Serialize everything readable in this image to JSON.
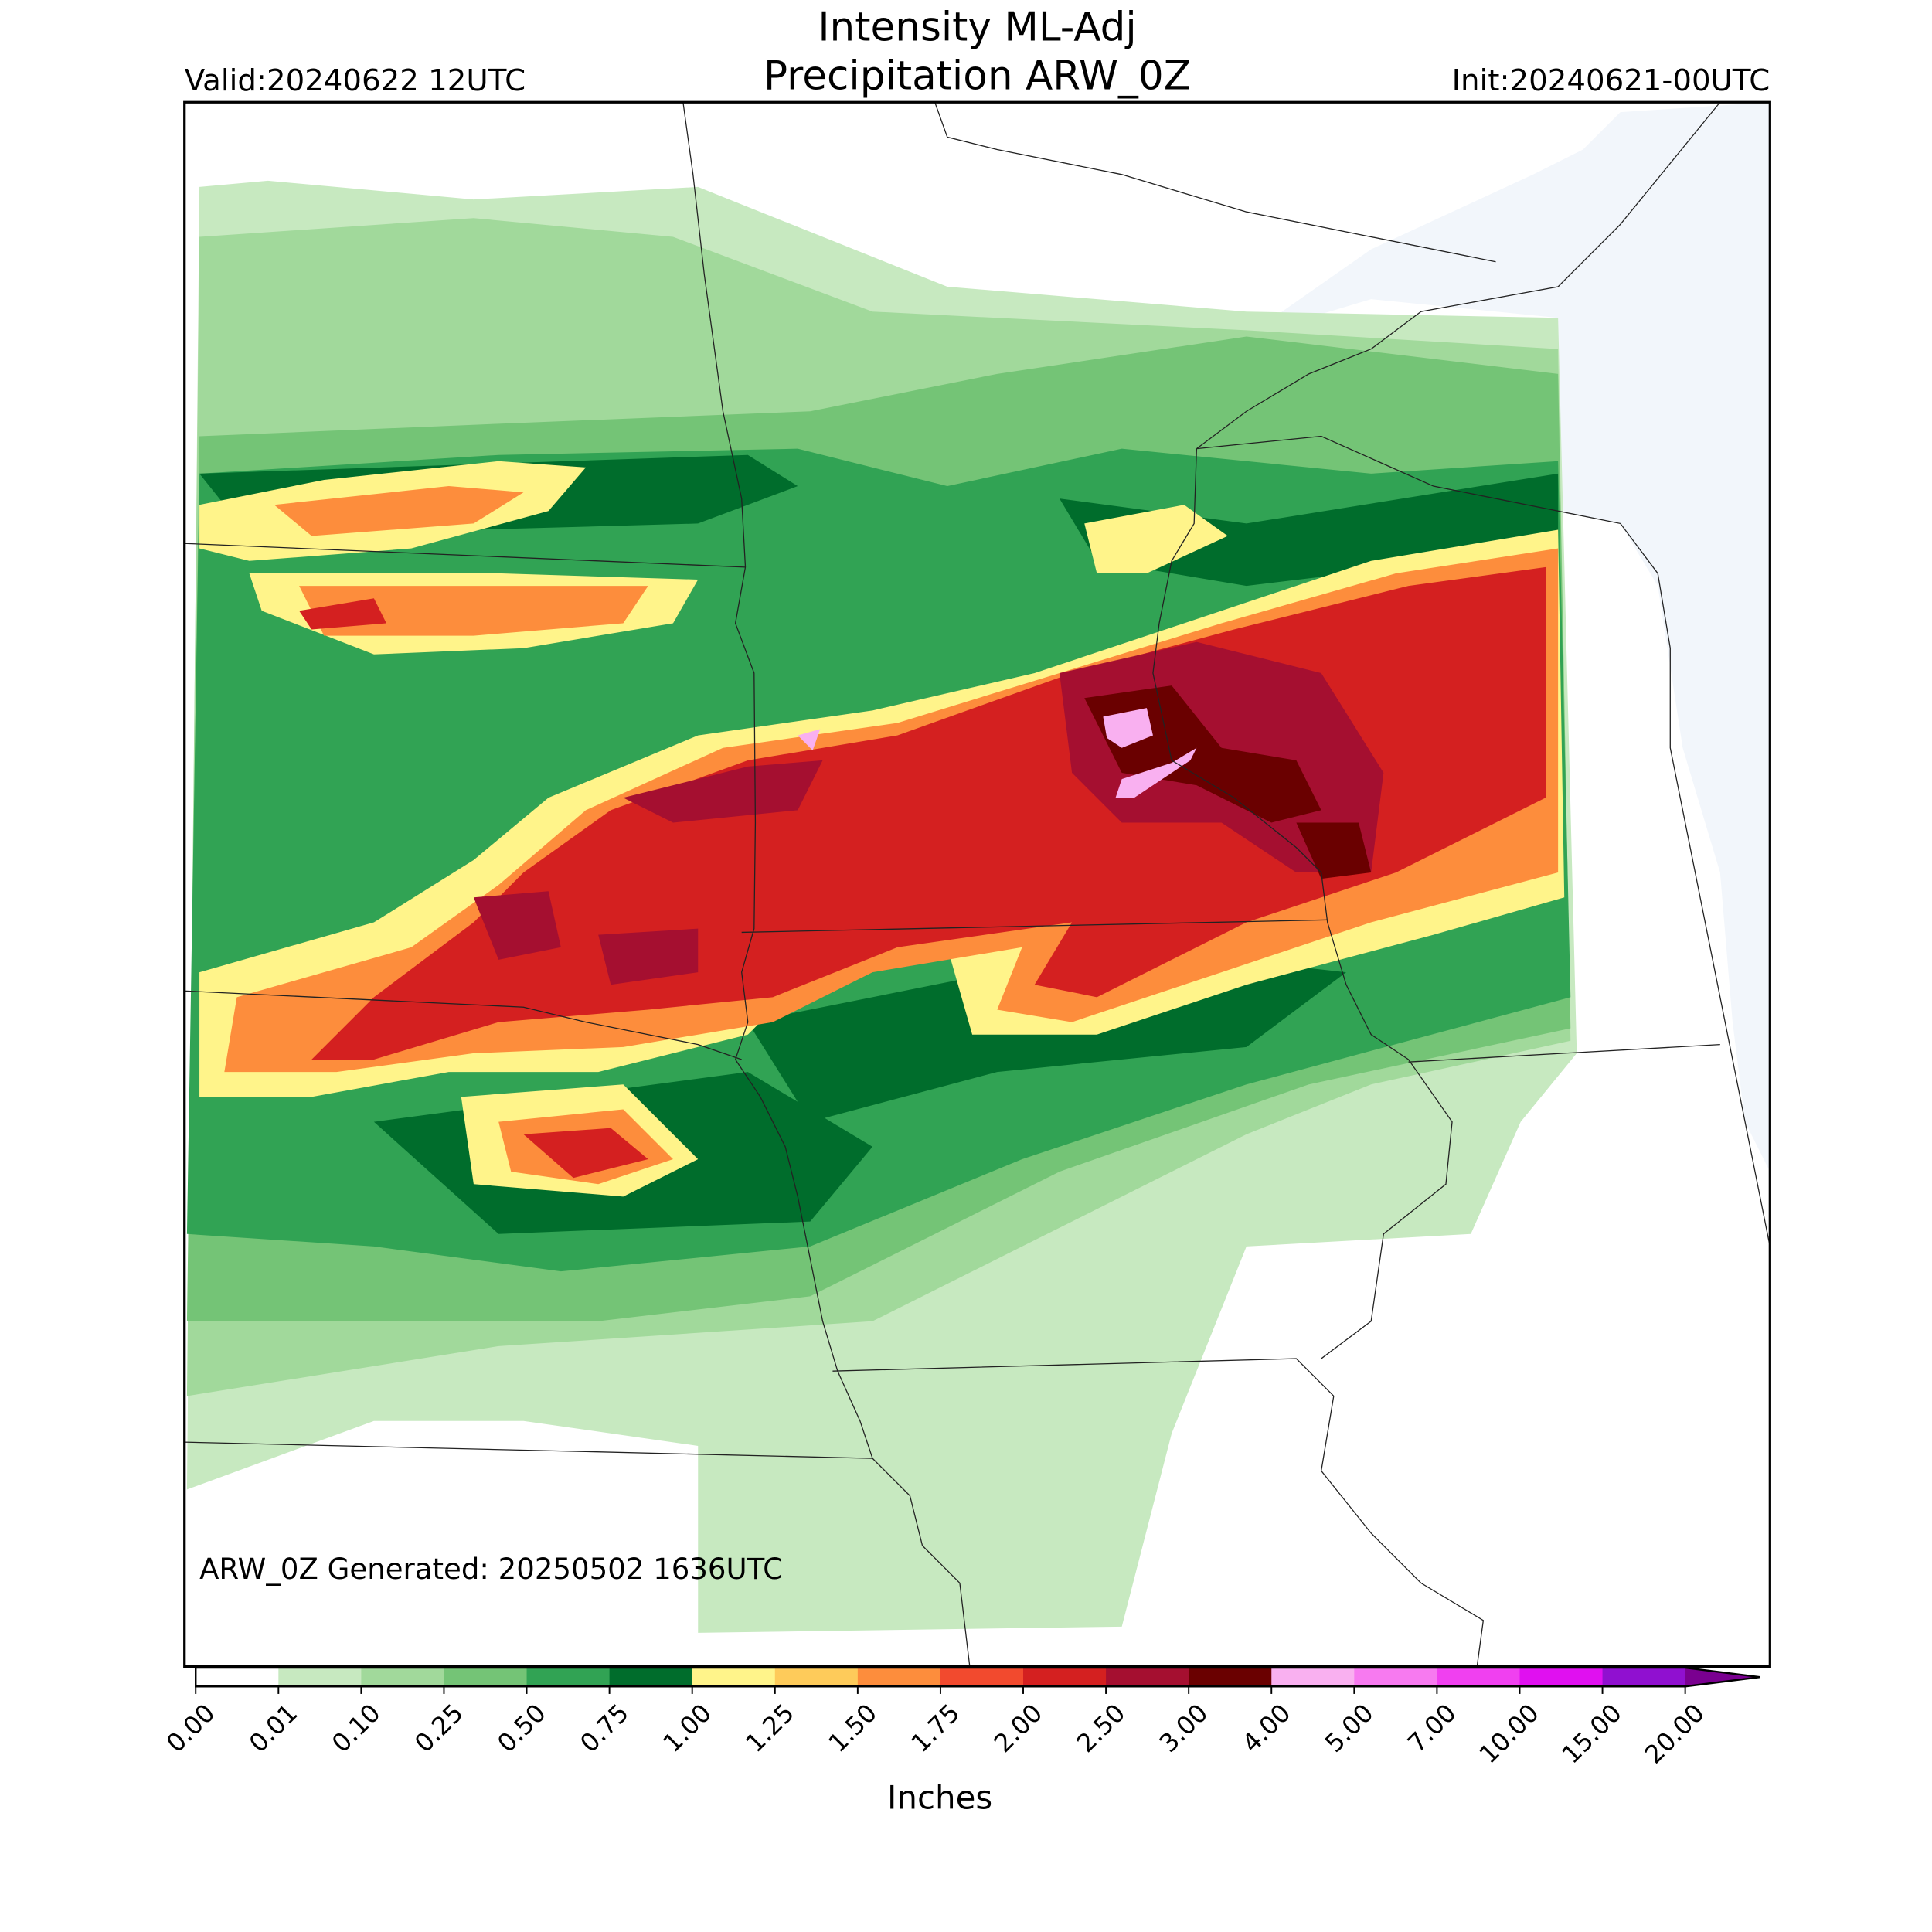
{
  "header": {
    "title_line1": "Intensity ML-Adj",
    "title_line2": "Precipitation ARW_0Z",
    "valid": "Valid:20240622 12UTC",
    "init": "Init:20240621-00UTC"
  },
  "map": {
    "generated": "ARW_0Z Generated: 20250502 1636UTC"
  },
  "colorbar": {
    "label": "Inches",
    "ticks": [
      {
        "value": 0,
        "label": "0.00"
      },
      {
        "value": 0.01,
        "label": "0.01"
      },
      {
        "value": 0.1,
        "label": "0.10"
      },
      {
        "value": 0.25,
        "label": "0.25"
      },
      {
        "value": 0.5,
        "label": "0.50"
      },
      {
        "value": 0.75,
        "label": "0.75"
      },
      {
        "value": 1,
        "label": "1.00"
      },
      {
        "value": 1.25,
        "label": "1.25"
      },
      {
        "value": 1.5,
        "label": "1.50"
      },
      {
        "value": 1.75,
        "label": "1.75"
      },
      {
        "value": 2,
        "label": "2.00"
      },
      {
        "value": 2.5,
        "label": "2.50"
      },
      {
        "value": 3,
        "label": "3.00"
      },
      {
        "value": 4,
        "label": "4.00"
      },
      {
        "value": 5,
        "label": "5.00"
      },
      {
        "value": 7,
        "label": "7.00"
      },
      {
        "value": 10,
        "label": "10.00"
      },
      {
        "value": 15,
        "label": "15.00"
      },
      {
        "value": 20,
        "label": "20.00"
      }
    ],
    "colors": [
      "#ffffff",
      "#c7e9c0",
      "#a1d99b",
      "#74c476",
      "#31a354",
      "#006d2c",
      "#fff48a",
      "#fecb5a",
      "#fd8d3c",
      "#f24a2e",
      "#d42020",
      "#a50f30",
      "#6a0000",
      "#f9b0f0",
      "#f77af0",
      "#f040f0",
      "#e010f0",
      "#9010d0"
    ],
    "extend_color": "#7a0090"
  }
}
